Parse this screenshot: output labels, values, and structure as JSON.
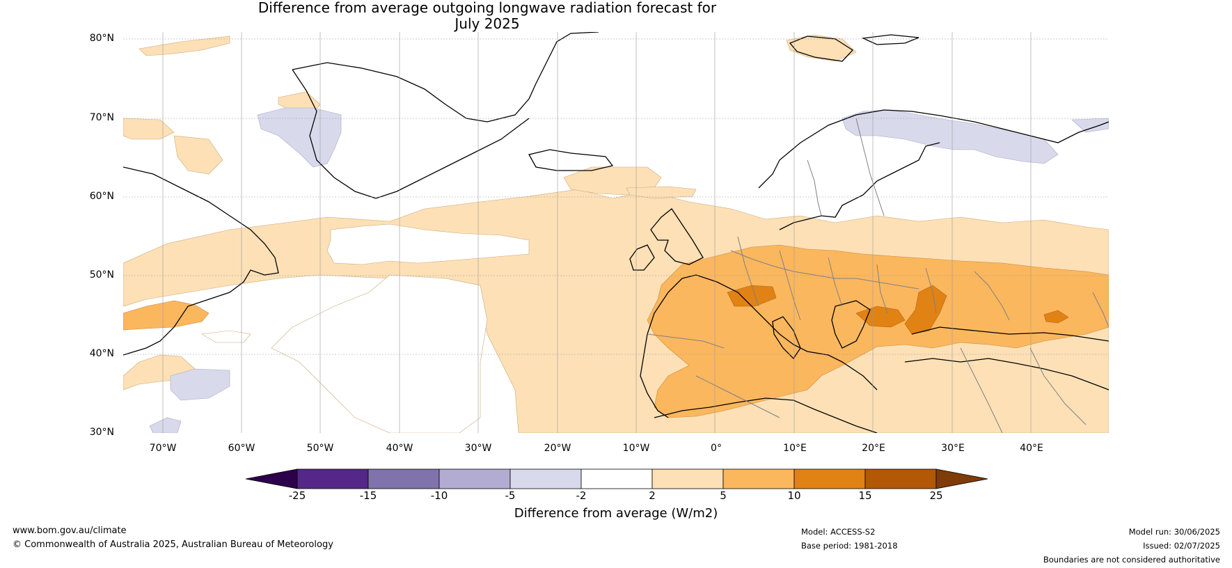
{
  "title": {
    "line1": "Difference from average outgoing longwave radiation forecast for",
    "line2": "July 2025"
  },
  "map": {
    "lat_labels": [
      "80°N",
      "70°N",
      "60°N",
      "50°N",
      "40°N",
      "30°N"
    ],
    "lon_labels": [
      "70°W",
      "60°W",
      "50°W",
      "40°W",
      "30°W",
      "20°W",
      "10°W",
      "0°",
      "10°E",
      "20°E",
      "30°E",
      "40°E"
    ],
    "land_outline_color": "#000000",
    "border_color": "#808080"
  },
  "colorbar": {
    "ticks": [
      "-25",
      "-15",
      "-10",
      "-5",
      "-2",
      "2",
      "5",
      "10",
      "15",
      "25"
    ],
    "colors": [
      "#2d004b",
      "#542788",
      "#8073ac",
      "#b2abd2",
      "#d8daeb",
      "#ffffff",
      "#fde0b6",
      "#fbb75e",
      "#e08214",
      "#b35806",
      "#7f3b08"
    ],
    "title": "Difference from average (W/m2)"
  },
  "footer": {
    "website": "www.bom.gov.au/climate",
    "copyright": "© Commonwealth of Australia 2025, Australian Bureau of Meteorology",
    "model": "Model: ACCESS-S2",
    "base_period": "Base period: 1981-2018",
    "model_run": "Model run: 30/06/2025",
    "issued": "Issued: 02/07/2025",
    "disclaimer": "Boundaries are not considered authoritative"
  }
}
